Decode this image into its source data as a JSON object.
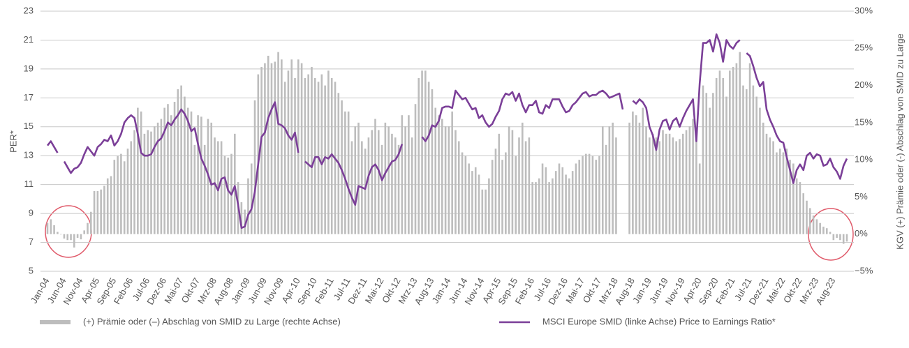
{
  "chart_data": {
    "type": "combo",
    "ylabel": "PER*",
    "y2label": "KGV (+) Prämie oder (-) Abschlag von SMID zu Large",
    "ylim": [
      5,
      23
    ],
    "yticks": [
      5,
      7,
      9,
      11,
      13,
      15,
      17,
      19,
      21,
      23
    ],
    "y2lim": [
      -5,
      30
    ],
    "y2ticks": [
      {
        "value": -5,
        "label": "−5%"
      },
      {
        "value": 0,
        "label": "0%"
      },
      {
        "value": 5,
        "label": "5%"
      },
      {
        "value": 10,
        "label": "10%"
      },
      {
        "value": 15,
        "label": "15%"
      },
      {
        "value": 20,
        "label": "20%"
      },
      {
        "value": 25,
        "label": "25%"
      },
      {
        "value": 30,
        "label": "30%"
      }
    ],
    "grid": true,
    "legend": "bottom",
    "categories": [
      "Jan-04",
      null,
      null,
      null,
      null,
      "Jun-04",
      null,
      null,
      null,
      null,
      "Nov-04",
      null,
      null,
      null,
      null,
      "Apr-05",
      null,
      null,
      null,
      null,
      "Sep-05",
      null,
      null,
      null,
      null,
      "Feb-06",
      null,
      null,
      null,
      null,
      "Jul-06",
      null,
      null,
      null,
      null,
      "Dez-06",
      null,
      null,
      null,
      null,
      "Mai-07",
      null,
      null,
      null,
      null,
      "Okt-07",
      null,
      null,
      null,
      null,
      "Mrz-08",
      null,
      null,
      null,
      null,
      "Aug-08",
      null,
      null,
      null,
      null,
      "Jan-09",
      null,
      null,
      null,
      null,
      "Jun-09",
      null,
      null,
      null,
      null,
      "Nov-09",
      null,
      null,
      null,
      null,
      "Apr-10",
      null,
      null,
      null,
      null,
      "Sep-10",
      null,
      null,
      null,
      null,
      "Feb-11",
      null,
      null,
      null,
      null,
      "Jul-11",
      null,
      null,
      null,
      null,
      "Dez-11",
      null,
      null,
      null,
      null,
      "Mai-12",
      null,
      null,
      null,
      null,
      "Okt-12",
      null,
      null,
      null,
      null,
      "Mrz-13",
      null,
      null,
      null,
      null,
      "Aug-13",
      null,
      null,
      null,
      null,
      "Jan-14",
      null,
      null,
      null,
      null,
      "Jun-14",
      null,
      null,
      null,
      null,
      "Nov-14",
      null,
      null,
      null,
      null,
      "Apr-15",
      null,
      null,
      null,
      null,
      "Sep-15",
      null,
      null,
      null,
      null,
      "Feb-16",
      null,
      null,
      null,
      null,
      "Jul-16",
      null,
      null,
      null,
      null,
      "Dez-16",
      null,
      null,
      null,
      null,
      "Mai-17",
      null,
      null,
      null,
      null,
      "Okt-17",
      null,
      null,
      null,
      null,
      "Mrz-18",
      null,
      null,
      null,
      null,
      "Aug-18",
      null,
      null,
      null,
      null,
      "Jan-19",
      null,
      null,
      null,
      null,
      "Jun-19",
      null,
      null,
      null,
      null,
      "Nov-19",
      null,
      null,
      null,
      null,
      "Apr-20",
      null,
      null,
      null,
      null,
      "Sep-20",
      null,
      null,
      null,
      null,
      "Feb-21",
      null,
      null,
      null,
      null,
      "Jul-21",
      null,
      null,
      null,
      null,
      "Dez-21",
      null,
      null,
      null,
      null,
      "Mai-22",
      null,
      null,
      null,
      null,
      "Okt-22",
      null,
      null,
      null,
      null,
      "Mrz-23",
      null,
      null,
      null,
      null,
      "Aug-23",
      null,
      null,
      null,
      null
    ],
    "series": [
      {
        "name": "(+) Prämie oder (–) Abschlag von SMID zu Large (rechte Achse)",
        "type": "bar",
        "axis": "y2",
        "color": "#bdbdbd",
        "values": [
          1.5,
          2.0,
          1.2,
          0.3,
          0.0,
          -0.6,
          -0.8,
          -0.8,
          -1.8,
          -0.5,
          -0.7,
          0.5,
          1.5,
          3.0,
          5.8,
          5.8,
          6.0,
          6.5,
          7.5,
          7.8,
          10.0,
          10.5,
          10.8,
          9.8,
          11.5,
          12.5,
          14.0,
          17.0,
          16.5,
          13.5,
          14.0,
          13.8,
          14.5,
          15.0,
          15.5,
          17.0,
          17.5,
          16.0,
          17.8,
          19.5,
          20.0,
          18.5,
          17.0,
          16.5,
          12.0,
          16.0,
          15.8,
          12.0,
          15.5,
          15.0,
          13.0,
          12.5,
          12.5,
          10.5,
          10.3,
          10.8,
          13.5,
          7.0,
          4.3,
          3.3,
          7.5,
          9.5,
          18.0,
          21.5,
          22.5,
          23.0,
          24.0,
          23.0,
          23.2,
          24.5,
          23.5,
          20.5,
          22.0,
          23.5,
          21.0,
          23.5,
          23.0,
          21.0,
          21.5,
          22.5,
          21.0,
          20.5,
          21.5,
          20.0,
          22.0,
          21.0,
          20.5,
          19.0,
          18.0,
          16.5,
          16.5,
          12.5,
          14.5,
          15.0,
          12.5,
          11.5,
          13.0,
          14.0,
          15.5,
          14.0,
          12.0,
          15.0,
          14.5,
          13.5,
          13.0,
          12.0,
          16.0,
          14.5,
          16.0,
          13.0,
          17.5,
          21.0,
          22.0,
          22.0,
          20.5,
          19.5,
          17.0,
          16.0,
          15.5,
          14.5,
          14.5,
          16.5,
          14.0,
          12.5,
          11.0,
          10.5,
          9.5,
          8.5,
          9.0,
          8.0,
          6.0,
          6.0,
          7.5,
          10.0,
          11.5,
          13.5,
          10.0,
          11.0,
          14.5,
          14.0,
          10.5,
          13.0,
          15.0,
          12.5,
          13.0,
          7.0,
          7.0,
          7.5,
          9.5,
          9.0,
          7.0,
          7.5,
          8.5,
          9.5,
          9.0,
          8.0,
          7.5,
          8.5,
          9.5,
          10.0,
          10.5,
          10.8,
          10.8,
          10.5,
          10.0,
          10.5,
          14.5,
          12.0,
          14.5,
          15.0,
          13.0,
          null,
          null,
          null,
          15.0,
          16.5,
          16.0,
          15.0,
          17.0,
          14.5,
          13.0,
          13.5,
          13.0,
          12.5,
          14.0,
          13.5,
          13.5,
          13.0,
          12.5,
          12.8,
          13.5,
          14.0,
          14.5,
          15.5,
          13.0,
          9.5,
          20.0,
          19.0,
          17.0,
          19.0,
          21.0,
          22.0,
          21.0,
          18.5,
          22.0,
          22.5,
          23.0,
          24.5,
          20.0,
          19.5,
          23.0,
          20.0,
          18.5,
          17.0,
          15.0,
          13.5,
          13.0,
          12.5,
          11.0,
          11.5,
          11.0,
          11.5,
          10.0,
          9.5,
          7.5,
          7.0,
          5.5,
          4.5,
          3.5,
          2.5,
          2.0,
          1.5,
          1.0,
          0.8,
          0.3,
          -0.8,
          -0.5,
          -0.8,
          -1.3,
          -1.0
        ]
      },
      {
        "name": "MSCI Europe SMID (linke Achse) Price to Earnings Ratio*",
        "type": "line",
        "color": "#7b3f98",
        "values": [
          13.7,
          14.0,
          13.6,
          13.2,
          null,
          12.6,
          12.2,
          11.8,
          12.1,
          12.2,
          12.5,
          13.1,
          13.6,
          13.3,
          13.0,
          13.6,
          13.8,
          14.1,
          14.0,
          14.4,
          13.7,
          14.0,
          14.5,
          15.3,
          15.6,
          15.8,
          15.6,
          14.5,
          13.2,
          13.0,
          13.0,
          13.1,
          13.6,
          14.0,
          14.2,
          14.7,
          15.3,
          15.1,
          15.5,
          15.8,
          16.2,
          15.9,
          15.4,
          14.7,
          14.9,
          13.8,
          12.8,
          12.3,
          11.7,
          11.0,
          11.1,
          10.6,
          11.4,
          11.5,
          10.6,
          10.3,
          10.9,
          9.6,
          8.0,
          8.1,
          8.9,
          9.3,
          10.5,
          12.4,
          14.3,
          14.6,
          15.6,
          16.2,
          16.7,
          15.2,
          15.1,
          14.9,
          14.4,
          14.1,
          14.6,
          13.2,
          null,
          12.6,
          12.4,
          12.2,
          12.9,
          12.9,
          12.4,
          12.9,
          12.8,
          13.1,
          12.8,
          12.5,
          12.0,
          11.4,
          10.7,
          10.1,
          9.6,
          10.9,
          10.8,
          10.7,
          11.6,
          12.2,
          12.4,
          12.0,
          11.3,
          11.8,
          12.2,
          12.6,
          12.7,
          13.1,
          13.8,
          null,
          null,
          null,
          null,
          null,
          14.3,
          14.0,
          14.4,
          15.1,
          15.0,
          15.4,
          16.3,
          16.4,
          16.4,
          16.3,
          17.5,
          17.2,
          16.9,
          17.0,
          16.6,
          16.2,
          16.3,
          15.6,
          15.8,
          15.3,
          15.0,
          15.2,
          15.7,
          16.1,
          16.9,
          17.3,
          17.2,
          17.4,
          16.8,
          17.3,
          16.5,
          16.0,
          16.5,
          16.5,
          16.8,
          16.0,
          15.9,
          16.5,
          16.3,
          16.9,
          16.9,
          16.9,
          16.4,
          16.0,
          16.1,
          16.5,
          16.7,
          17.0,
          17.3,
          17.4,
          17.1,
          17.2,
          17.2,
          17.4,
          17.5,
          17.3,
          17.0,
          17.1,
          17.2,
          17.3,
          16.2,
          null,
          null,
          16.8,
          16.6,
          16.9,
          16.7,
          16.3,
          15.0,
          14.4,
          13.4,
          14.8,
          15.4,
          15.5,
          14.8,
          15.4,
          15.6,
          15.0,
          15.6,
          16.1,
          16.5,
          16.9,
          14.0,
          18.0,
          20.8,
          20.8,
          21.0,
          20.2,
          21.4,
          20.8,
          19.5,
          21.0,
          20.6,
          20.4,
          20.8,
          21.0,
          null,
          20.1,
          19.9,
          19.2,
          18.4,
          17.8,
          18.1,
          16.2,
          15.5,
          15.0,
          14.4,
          14.0,
          13.9,
          12.9,
          12.0,
          11.1,
          12.0,
          12.4,
          12.0,
          13.0,
          13.2,
          12.8,
          13.1,
          13.0,
          12.3,
          12.4,
          12.8,
          12.2,
          11.9,
          11.4,
          12.3,
          12.8
        ]
      }
    ]
  }
}
